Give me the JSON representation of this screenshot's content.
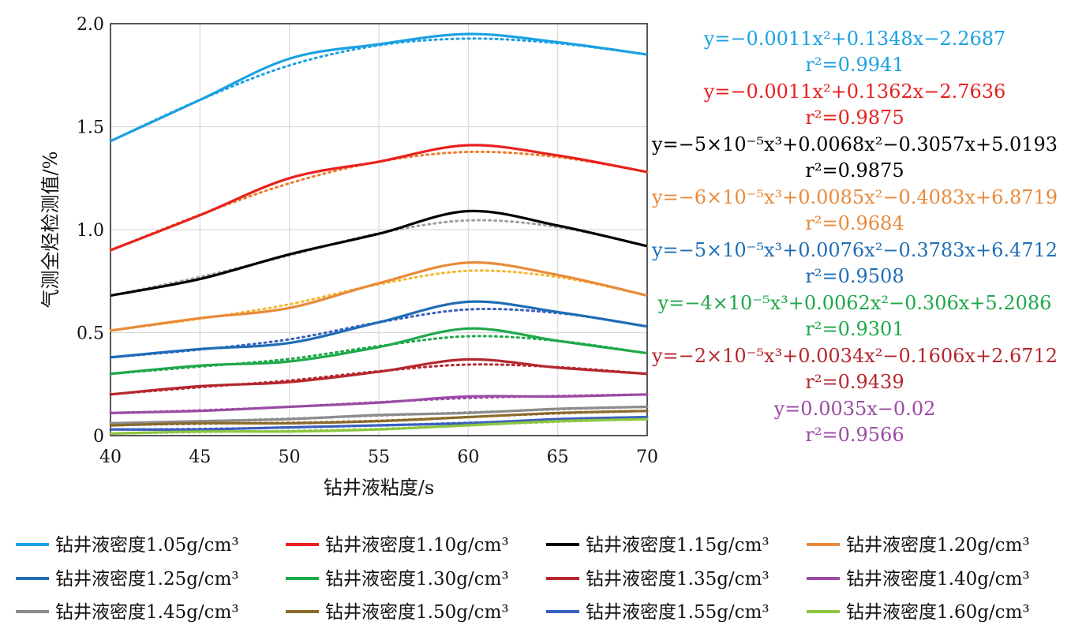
{
  "chart_data": {
    "type": "line",
    "xlabel": "钻井液粘度/s",
    "ylabel": "气测全烃检测值/%",
    "xlim": [
      40,
      70
    ],
    "ylim": [
      0,
      2.0
    ],
    "xticks": [
      40,
      45,
      50,
      55,
      60,
      65,
      70
    ],
    "yticks": [
      {
        "value": 0,
        "label": "0"
      },
      {
        "value": 0.5,
        "label": "0.5"
      },
      {
        "value": 1.0,
        "label": "1.0"
      },
      {
        "value": 1.5,
        "label": "1.5"
      },
      {
        "value": 2.0,
        "label": "2.0"
      }
    ],
    "grid": true,
    "legend_position": "bottom",
    "x": [
      40,
      45,
      50,
      55,
      60,
      65,
      70
    ],
    "series": [
      {
        "name": "钻井液密度1.05g/cm³",
        "color": "#1ba1e2",
        "trend_color": "#1ba1e2",
        "values": [
          1.43,
          1.63,
          1.83,
          1.9,
          1.95,
          1.91,
          1.85
        ]
      },
      {
        "name": "钻井液密度1.10g/cm³",
        "color": "#e8211e",
        "trend_color": "#f07a2a",
        "values": [
          0.9,
          1.07,
          1.25,
          1.33,
          1.41,
          1.36,
          1.28
        ]
      },
      {
        "name": "钻井液密度1.15g/cm³",
        "color": "#000000",
        "trend_color": "#9e9e9e",
        "values": [
          0.68,
          0.76,
          0.88,
          0.98,
          1.09,
          1.02,
          0.92
        ]
      },
      {
        "name": "钻井液密度1.20g/cm³",
        "color": "#e88a3a",
        "trend_color": "#f5b72a",
        "values": [
          0.51,
          0.57,
          0.62,
          0.74,
          0.84,
          0.78,
          0.68
        ]
      },
      {
        "name": "钻井液密度1.25g/cm³",
        "color": "#1f6db5",
        "trend_color": "#3a5fbf",
        "values": [
          0.38,
          0.42,
          0.45,
          0.55,
          0.65,
          0.6,
          0.53
        ]
      },
      {
        "name": "钻井液密度1.30g/cm³",
        "color": "#1fa84a",
        "trend_color": "#1fa84a",
        "values": [
          0.3,
          0.34,
          0.36,
          0.43,
          0.52,
          0.46,
          0.4
        ]
      },
      {
        "name": "钻井液密度1.35g/cm³",
        "color": "#b5272d",
        "trend_color": "#b5272d",
        "values": [
          0.2,
          0.24,
          0.26,
          0.31,
          0.37,
          0.33,
          0.3
        ]
      },
      {
        "name": "钻井液密度1.40g/cm³",
        "color": "#9b4aa5",
        "trend_color": "#9b4aa5",
        "values": [
          0.11,
          0.12,
          0.14,
          0.16,
          0.19,
          0.19,
          0.2
        ]
      },
      {
        "name": "钻井液密度1.45g/cm³",
        "color": "#8c8c8c",
        "trend_color": "#8c8c8c",
        "values": [
          0.06,
          0.07,
          0.08,
          0.1,
          0.11,
          0.13,
          0.14
        ]
      },
      {
        "name": "钻井液密度1.50g/cm³",
        "color": "#8b6a2a",
        "trend_color": "#8b6a2a",
        "values": [
          0.05,
          0.06,
          0.06,
          0.07,
          0.09,
          0.11,
          0.12
        ]
      },
      {
        "name": "钻井液密度1.55g/cm³",
        "color": "#3a5fbf",
        "trend_color": "#3a5fbf",
        "values": [
          0.03,
          0.03,
          0.04,
          0.05,
          0.06,
          0.08,
          0.09
        ]
      },
      {
        "name": "钻井液密度1.60g/cm³",
        "color": "#8cc63f",
        "trend_color": "#8cc63f",
        "values": [
          0.01,
          0.02,
          0.02,
          0.03,
          0.05,
          0.07,
          0.08
        ]
      }
    ],
    "annotations": [
      {
        "color": "#1ba1e2",
        "equation": "y=−0.0011x²+0.1348x−2.2687",
        "r2": "r²=0.9941",
        "r2_color": "#1ba1e2"
      },
      {
        "color": "#e8211e",
        "equation": "y=−0.0011x²+0.1362x−2.7636",
        "r2": "r²=0.9875",
        "r2_color": "#e8211e"
      },
      {
        "color": "#000000",
        "equation": "y=−5×10⁻⁵x³+0.0068x²−0.3057x+5.0193",
        "r2": "r²=0.9875",
        "r2_color": "#000000"
      },
      {
        "color": "#e88a3a",
        "equation": "y=−6×10⁻⁵x³+0.0085x²−0.4083x+6.8719",
        "r2": "r²=0.9684",
        "r2_color": "#e88a3a"
      },
      {
        "color": "#1f6db5",
        "equation": "y=−5×10⁻⁵x³+0.0076x²−0.3783x+6.4712",
        "r2": "r²=0.9508",
        "r2_color": "#1f6db5"
      },
      {
        "color": "#1fa84a",
        "equation": "y=−4×10⁻⁵x³+0.0062x²−0.306x+5.2086",
        "r2": "r²=0.9301",
        "r2_color": "#1fa84a"
      },
      {
        "color": "#b5272d",
        "equation": "y=−2×10⁻⁵x³+0.0034x²−0.1606x+2.6712",
        "r2": "r²=0.9439",
        "r2_color": "#b5272d"
      },
      {
        "color": "#9b4aa5",
        "equation": "y=0.0035x−0.02",
        "r2": "r²=0.9566",
        "r2_color": "#9b4aa5"
      }
    ]
  }
}
